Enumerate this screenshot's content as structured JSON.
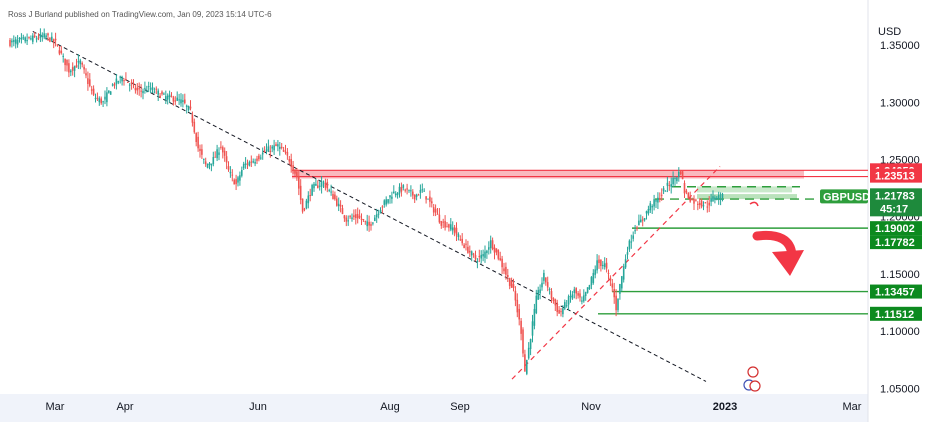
{
  "attribution": "Ross J Burland published on TradingView.com, Jan 09, 2023 15:14 UTC-6",
  "colors": {
    "up": "#26a69a",
    "down": "#ef5350",
    "resistance": "#f23645",
    "support": "#089981",
    "support_tag": "#0c8a1f",
    "price_tag": "#1e8a3c",
    "trend": "#131722"
  },
  "chart_data": {
    "type": "candlestick",
    "symbol": "GBPUSD",
    "currency": "USD",
    "current_price": "1.21783",
    "countdown": "45:17",
    "y_range": [
      1.045,
      1.372
    ],
    "y_ticks": [
      "1.35000",
      "1.30000",
      "1.25000",
      "1.20000",
      "1.15000",
      "1.10000",
      "1.05000"
    ],
    "x_ticks": [
      "Mar",
      "Apr",
      "Jun",
      "Aug",
      "Sep",
      "Nov",
      "2023",
      "Mar"
    ],
    "resistance_levels": [
      "1.24059",
      "1.23513"
    ],
    "support_levels": [
      "1.21546",
      "1.19002",
      "1.17782",
      "1.13457",
      "1.11512"
    ],
    "path": [
      [
        0,
        1.352
      ],
      [
        10,
        1.355
      ],
      [
        20,
        1.358
      ],
      [
        25,
        1.352
      ],
      [
        32,
        1.328
      ],
      [
        38,
        1.335
      ],
      [
        45,
        1.305
      ],
      [
        50,
        1.3
      ],
      [
        55,
        1.315
      ],
      [
        60,
        1.322
      ],
      [
        68,
        1.31
      ],
      [
        75,
        1.312
      ],
      [
        82,
        1.305
      ],
      [
        88,
        1.303
      ],
      [
        92,
        1.3
      ],
      [
        96,
        1.292
      ],
      [
        100,
        1.26
      ],
      [
        104,
        1.245
      ],
      [
        108,
        1.25
      ],
      [
        112,
        1.262
      ],
      [
        116,
        1.24
      ],
      [
        120,
        1.228
      ],
      [
        124,
        1.245
      ],
      [
        130,
        1.25
      ],
      [
        136,
        1.258
      ],
      [
        142,
        1.262
      ],
      [
        148,
        1.25
      ],
      [
        152,
        1.235
      ],
      [
        155,
        1.205
      ],
      [
        160,
        1.225
      ],
      [
        166,
        1.23
      ],
      [
        172,
        1.215
      ],
      [
        178,
        1.198
      ],
      [
        184,
        1.2
      ],
      [
        190,
        1.192
      ],
      [
        196,
        1.208
      ],
      [
        202,
        1.22
      ],
      [
        208,
        1.225
      ],
      [
        214,
        1.218
      ],
      [
        218,
        1.223
      ],
      [
        222,
        1.212
      ],
      [
        228,
        1.195
      ],
      [
        234,
        1.19
      ],
      [
        240,
        1.175
      ],
      [
        246,
        1.163
      ],
      [
        250,
        1.166
      ],
      [
        254,
        1.178
      ],
      [
        258,
        1.165
      ],
      [
        262,
        1.15
      ],
      [
        266,
        1.135
      ],
      [
        270,
        1.1
      ],
      [
        272,
        1.065
      ],
      [
        274,
        1.085
      ],
      [
        278,
        1.128
      ],
      [
        282,
        1.148
      ],
      [
        286,
        1.13
      ],
      [
        290,
        1.115
      ],
      [
        294,
        1.125
      ],
      [
        298,
        1.135
      ],
      [
        302,
        1.125
      ],
      [
        306,
        1.14
      ],
      [
        310,
        1.16
      ],
      [
        314,
        1.158
      ],
      [
        318,
        1.138
      ],
      [
        320,
        1.12
      ],
      [
        322,
        1.14
      ],
      [
        326,
        1.172
      ],
      [
        330,
        1.19
      ],
      [
        334,
        1.198
      ],
      [
        338,
        1.21
      ],
      [
        342,
        1.215
      ],
      [
        346,
        1.225
      ],
      [
        350,
        1.232
      ],
      [
        354,
        1.24
      ],
      [
        356,
        1.222
      ],
      [
        360,
        1.214
      ],
      [
        364,
        1.212
      ],
      [
        368,
        1.21
      ],
      [
        372,
        1.218
      ],
      [
        376,
        1.217
      ]
    ],
    "descending_trendline": [
      [
        12,
        1.362
      ],
      [
        290,
        1.063
      ]
    ],
    "rising_trendline": [
      [
        262,
        1.058
      ],
      [
        365,
        1.24
      ]
    ]
  }
}
